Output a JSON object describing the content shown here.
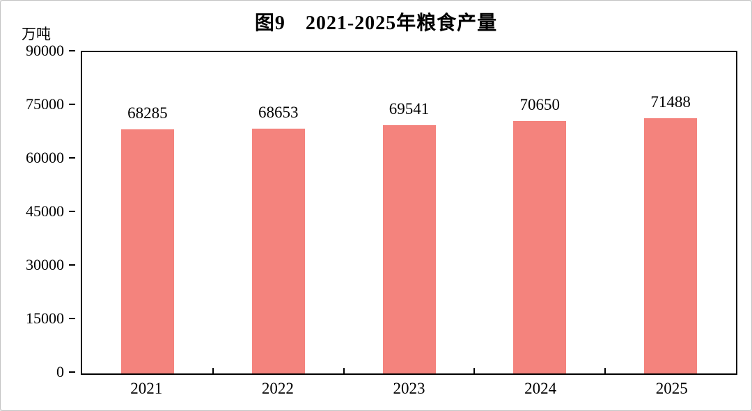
{
  "chart_data": {
    "type": "bar",
    "title": "图9　2021-2025年粮食产量",
    "categories": [
      "2021",
      "2022",
      "2023",
      "2024",
      "2025"
    ],
    "values": [
      68285,
      68653,
      69541,
      70650,
      71488
    ],
    "data_labels": [
      "68285",
      "68653",
      "69541",
      "70650",
      "71488"
    ],
    "xlabel": "",
    "ylabel": "万吨",
    "ylim": [
      0,
      90000
    ],
    "yticks": [
      0,
      15000,
      30000,
      45000,
      60000,
      75000,
      90000
    ],
    "grid": false,
    "legend": null,
    "bar_color": "#f4837d",
    "axis_color": "#000000"
  }
}
